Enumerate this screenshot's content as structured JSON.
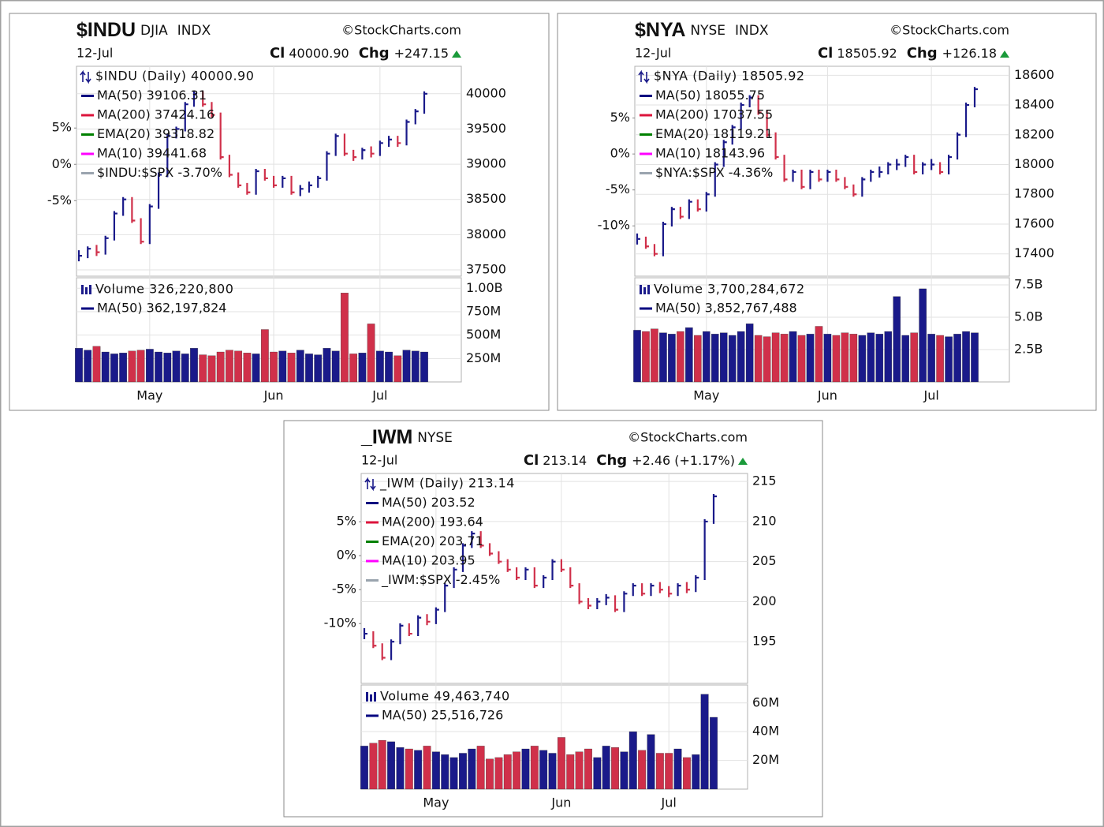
{
  "chart_data": [
    {
      "type": "stock",
      "symbol": "$INDU",
      "exchange": "DJIA",
      "index": "INDX",
      "watermark": "©StockCharts.com",
      "date": "12-Jul",
      "close_label": "Cl",
      "close": "40000.90",
      "chg_label": "Chg",
      "chg": "+247.15",
      "price_legend": "$INDU (Daily) 40000.90",
      "overlays": [
        {
          "name": "MA(50) 39106.31",
          "color": "#000080"
        },
        {
          "name": "MA(200) 37424.16",
          "color": "#dc143c"
        },
        {
          "name": "EMA(20) 39318.82",
          "color": "#008000"
        },
        {
          "name": "MA(10) 39441.68",
          "color": "#ff00ff"
        },
        {
          "name": "$INDU:$SPX -3.70%",
          "color": "#9aa4ae"
        }
      ],
      "up_color": "#1a1a8a",
      "down_color": "#d0304a",
      "categories": [
        null,
        null,
        null,
        null,
        null,
        null,
        null,
        null,
        "May",
        null,
        null,
        null,
        null,
        null,
        null,
        null,
        null,
        null,
        null,
        null,
        null,
        null,
        "Jun",
        null,
        null,
        null,
        null,
        null,
        null,
        null,
        null,
        null,
        null,
        null,
        "Jul",
        null,
        null,
        null,
        null,
        null
      ],
      "prices": [
        37700,
        37800,
        37750,
        37950,
        38300,
        38500,
        38200,
        37900,
        38400,
        38850,
        39400,
        39500,
        39850,
        40000,
        39850,
        39700,
        39100,
        38850,
        38700,
        38600,
        38900,
        38800,
        38700,
        38800,
        38600,
        38650,
        38700,
        38800,
        39150,
        39400,
        39150,
        39100,
        39200,
        39150,
        39300,
        39350,
        39300,
        39600,
        39750,
        40000
      ],
      "ylim": [
        37410,
        40390
      ],
      "yticks": [
        37500,
        38000,
        38500,
        39000,
        39500,
        40000
      ],
      "y2lim": [
        -15.4,
        13.5
      ],
      "y2ticks": [
        {
          "value": 5,
          "label": "5%"
        },
        {
          "value": 0,
          "label": "0%"
        },
        {
          "value": -5,
          "label": "-5%"
        }
      ],
      "volume_legend": "Volume 326,220,800",
      "volume_ma_legend": "MA(50) 362,197,824",
      "volumes": [
        360000000,
        340000000,
        380000000,
        320000000,
        300000000,
        310000000,
        330000000,
        340000000,
        350000000,
        320000000,
        310000000,
        330000000,
        300000000,
        360000000,
        290000000,
        280000000,
        320000000,
        340000000,
        330000000,
        310000000,
        300000000,
        560000000,
        320000000,
        330000000,
        310000000,
        340000000,
        300000000,
        290000000,
        360000000,
        330000000,
        950000000,
        300000000,
        310000000,
        620000000,
        330000000,
        320000000,
        280000000,
        340000000,
        330000000,
        320000000
      ],
      "vlim": [
        0,
        1112000000
      ],
      "vticks": [
        {
          "value": 250000000,
          "label": "250M"
        },
        {
          "value": 500000000,
          "label": "500M"
        },
        {
          "value": 750000000,
          "label": "750M"
        },
        {
          "value": 1000000000,
          "label": "1.00B"
        }
      ]
    },
    {
      "type": "stock",
      "symbol": "$NYA",
      "exchange": "NYSE",
      "index": "INDX",
      "watermark": "©StockCharts.com",
      "date": "12-Jul",
      "close_label": "Cl",
      "close": "18505.92",
      "chg_label": "Chg",
      "chg": "+126.18",
      "price_legend": "$NYA (Daily) 18505.92",
      "overlays": [
        {
          "name": "MA(50) 18055.75",
          "color": "#000080"
        },
        {
          "name": "MA(200) 17037.55",
          "color": "#dc143c"
        },
        {
          "name": "EMA(20) 18119.21",
          "color": "#008000"
        },
        {
          "name": "MA(10) 18143.96",
          "color": "#ff00ff"
        },
        {
          "name": "$NYA:$SPX -4.36%",
          "color": "#9aa4ae"
        }
      ],
      "up_color": "#1a1a8a",
      "down_color": "#d0304a",
      "categories": [
        null,
        null,
        null,
        null,
        null,
        null,
        null,
        null,
        "May",
        null,
        null,
        null,
        null,
        null,
        null,
        null,
        null,
        null,
        null,
        null,
        null,
        null,
        "Jun",
        null,
        null,
        null,
        null,
        null,
        null,
        null,
        null,
        null,
        null,
        null,
        "Jul",
        null,
        null,
        null,
        null,
        null
      ],
      "prices": [
        17500,
        17450,
        17400,
        17600,
        17700,
        17650,
        17750,
        17700,
        17800,
        18000,
        18150,
        18250,
        18400,
        18450,
        18350,
        18200,
        18050,
        17900,
        17950,
        17850,
        17950,
        17900,
        17950,
        17900,
        17850,
        17800,
        17900,
        17950,
        17950,
        18000,
        18000,
        18050,
        17950,
        18000,
        18000,
        17950,
        18050,
        18200,
        18400,
        18505.92
      ],
      "ylim": [
        17250,
        18660
      ],
      "yticks": [
        17400,
        17600,
        17800,
        18000,
        18200,
        18400,
        18600
      ],
      "y2lim": [
        -17.0,
        12.2
      ],
      "y2ticks": [
        {
          "value": 5,
          "label": "5%"
        },
        {
          "value": 0,
          "label": "0%"
        },
        {
          "value": -5,
          "label": "-5%"
        },
        {
          "value": -10,
          "label": "-10%"
        }
      ],
      "volume_legend": "Volume 3,700,284,672",
      "volume_ma_legend": "MA(50) 3,852,767,488",
      "volumes": [
        4000000000,
        3900000000,
        4100000000,
        3800000000,
        3700000000,
        3900000000,
        4200000000,
        3600000000,
        3900000000,
        3700000000,
        3800000000,
        3600000000,
        3900000000,
        4500000000,
        3600000000,
        3500000000,
        3800000000,
        3700000000,
        3900000000,
        3600000000,
        3700000000,
        4300000000,
        3700000000,
        3600000000,
        3800000000,
        3700000000,
        3600000000,
        3800000000,
        3700000000,
        3900000000,
        6600000000,
        3600000000,
        3800000000,
        7200000000,
        3700000000,
        3600000000,
        3500000000,
        3700000000,
        3900000000,
        3800000000
      ],
      "vlim": [
        0,
        8050000000
      ],
      "vticks": [
        {
          "value": 2500000000,
          "label": "2.5B"
        },
        {
          "value": 5000000000,
          "label": "5.0B"
        },
        {
          "value": 7500000000,
          "label": "7.5B"
        }
      ]
    },
    {
      "type": "stock",
      "symbol": "_IWM",
      "exchange": "NYSE",
      "watermark": "©StockCharts.com",
      "date": "12-Jul",
      "close_label": "Cl",
      "close": "213.14",
      "chg_label": "Chg",
      "chg": "+2.46 (+1.17%)",
      "price_legend": "_IWM (Daily) 213.14",
      "overlays": [
        {
          "name": "MA(50) 203.52",
          "color": "#000080"
        },
        {
          "name": "MA(200) 193.64",
          "color": "#dc143c"
        },
        {
          "name": "EMA(20) 203.71",
          "color": "#008000"
        },
        {
          "name": "MA(10) 203.95",
          "color": "#ff00ff"
        },
        {
          "name": "_IWM:$SPX -2.45%",
          "color": "#9aa4ae"
        }
      ],
      "up_color": "#1a1a8a",
      "down_color": "#d0304a",
      "categories": [
        null,
        null,
        null,
        null,
        null,
        null,
        null,
        null,
        "May",
        null,
        null,
        null,
        null,
        null,
        null,
        null,
        null,
        null,
        null,
        null,
        null,
        null,
        "Jun",
        null,
        null,
        null,
        null,
        null,
        null,
        null,
        null,
        null,
        null,
        null,
        "Jul",
        null,
        null,
        null,
        null,
        null
      ],
      "prices": [
        196,
        194.5,
        193,
        195,
        197,
        196,
        198,
        197.5,
        199,
        202,
        204,
        207,
        208.5,
        207,
        206,
        205,
        204,
        203,
        204,
        202,
        203,
        205,
        204,
        202,
        200,
        199.5,
        200,
        200.5,
        199,
        201,
        202,
        201,
        202,
        201.5,
        201,
        202,
        201.5,
        203,
        210,
        213.14
      ],
      "ylim": [
        189.8,
        216
      ],
      "yticks": [
        195,
        200,
        205,
        210,
        215
      ],
      "y2lim": [
        -18.8,
        12.1
      ],
      "y2ticks": [
        {
          "value": 5,
          "label": "5%"
        },
        {
          "value": 0,
          "label": "0%"
        },
        {
          "value": -5,
          "label": "-5%"
        },
        {
          "value": -10,
          "label": "-10%"
        }
      ],
      "volume_legend": "Volume 49,463,740",
      "volume_ma_legend": "MA(50) 25,516,726",
      "volumes": [
        30000000,
        32000000,
        34000000,
        33000000,
        29000000,
        28000000,
        27000000,
        30000000,
        26000000,
        24000000,
        22000000,
        25000000,
        28000000,
        30000000,
        21000000,
        22000000,
        24000000,
        26000000,
        28000000,
        30000000,
        27000000,
        25000000,
        36000000,
        24000000,
        26000000,
        28000000,
        22000000,
        30000000,
        29000000,
        26000000,
        40000000,
        27000000,
        38000000,
        25000000,
        25000000,
        28000000,
        22000000,
        24000000,
        66000000,
        50000000
      ],
      "vlim": [
        0,
        72500000
      ],
      "vticks": [
        {
          "value": 20000000,
          "label": "20M"
        },
        {
          "value": 40000000,
          "label": "40M"
        },
        {
          "value": 60000000,
          "label": "60M"
        }
      ]
    }
  ]
}
